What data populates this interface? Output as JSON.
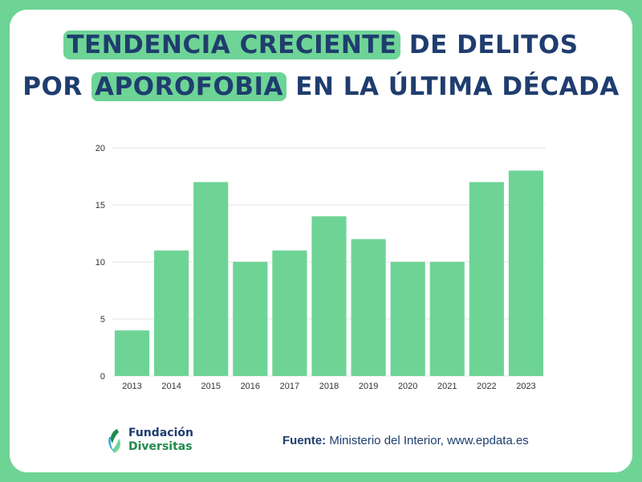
{
  "header": {
    "title_part1": "Tendencia creciente",
    "title_part2": " de delitos",
    "title_part3": "por ",
    "title_part4": "aporofobia",
    "title_part5": " en la última década"
  },
  "chart_data": {
    "type": "bar",
    "categories": [
      "2013",
      "2014",
      "2015",
      "2016",
      "2017",
      "2018",
      "2019",
      "2020",
      "2021",
      "2022",
      "2023"
    ],
    "values": [
      4,
      11,
      17,
      10,
      11,
      14,
      12,
      10,
      10,
      17,
      18
    ],
    "yticks": [
      0,
      5,
      10,
      15,
      20
    ],
    "ylim": [
      0,
      20
    ],
    "grid": true,
    "bar_color": "#6ed496"
  },
  "footer": {
    "logo_line1": "Fundación",
    "logo_line2": "Diversitas",
    "source_label": "Fuente:",
    "source_text": " Ministerio del Interior, www.epdata.es"
  },
  "colors": {
    "accent": "#6ed496",
    "title": "#1f3d6e"
  }
}
